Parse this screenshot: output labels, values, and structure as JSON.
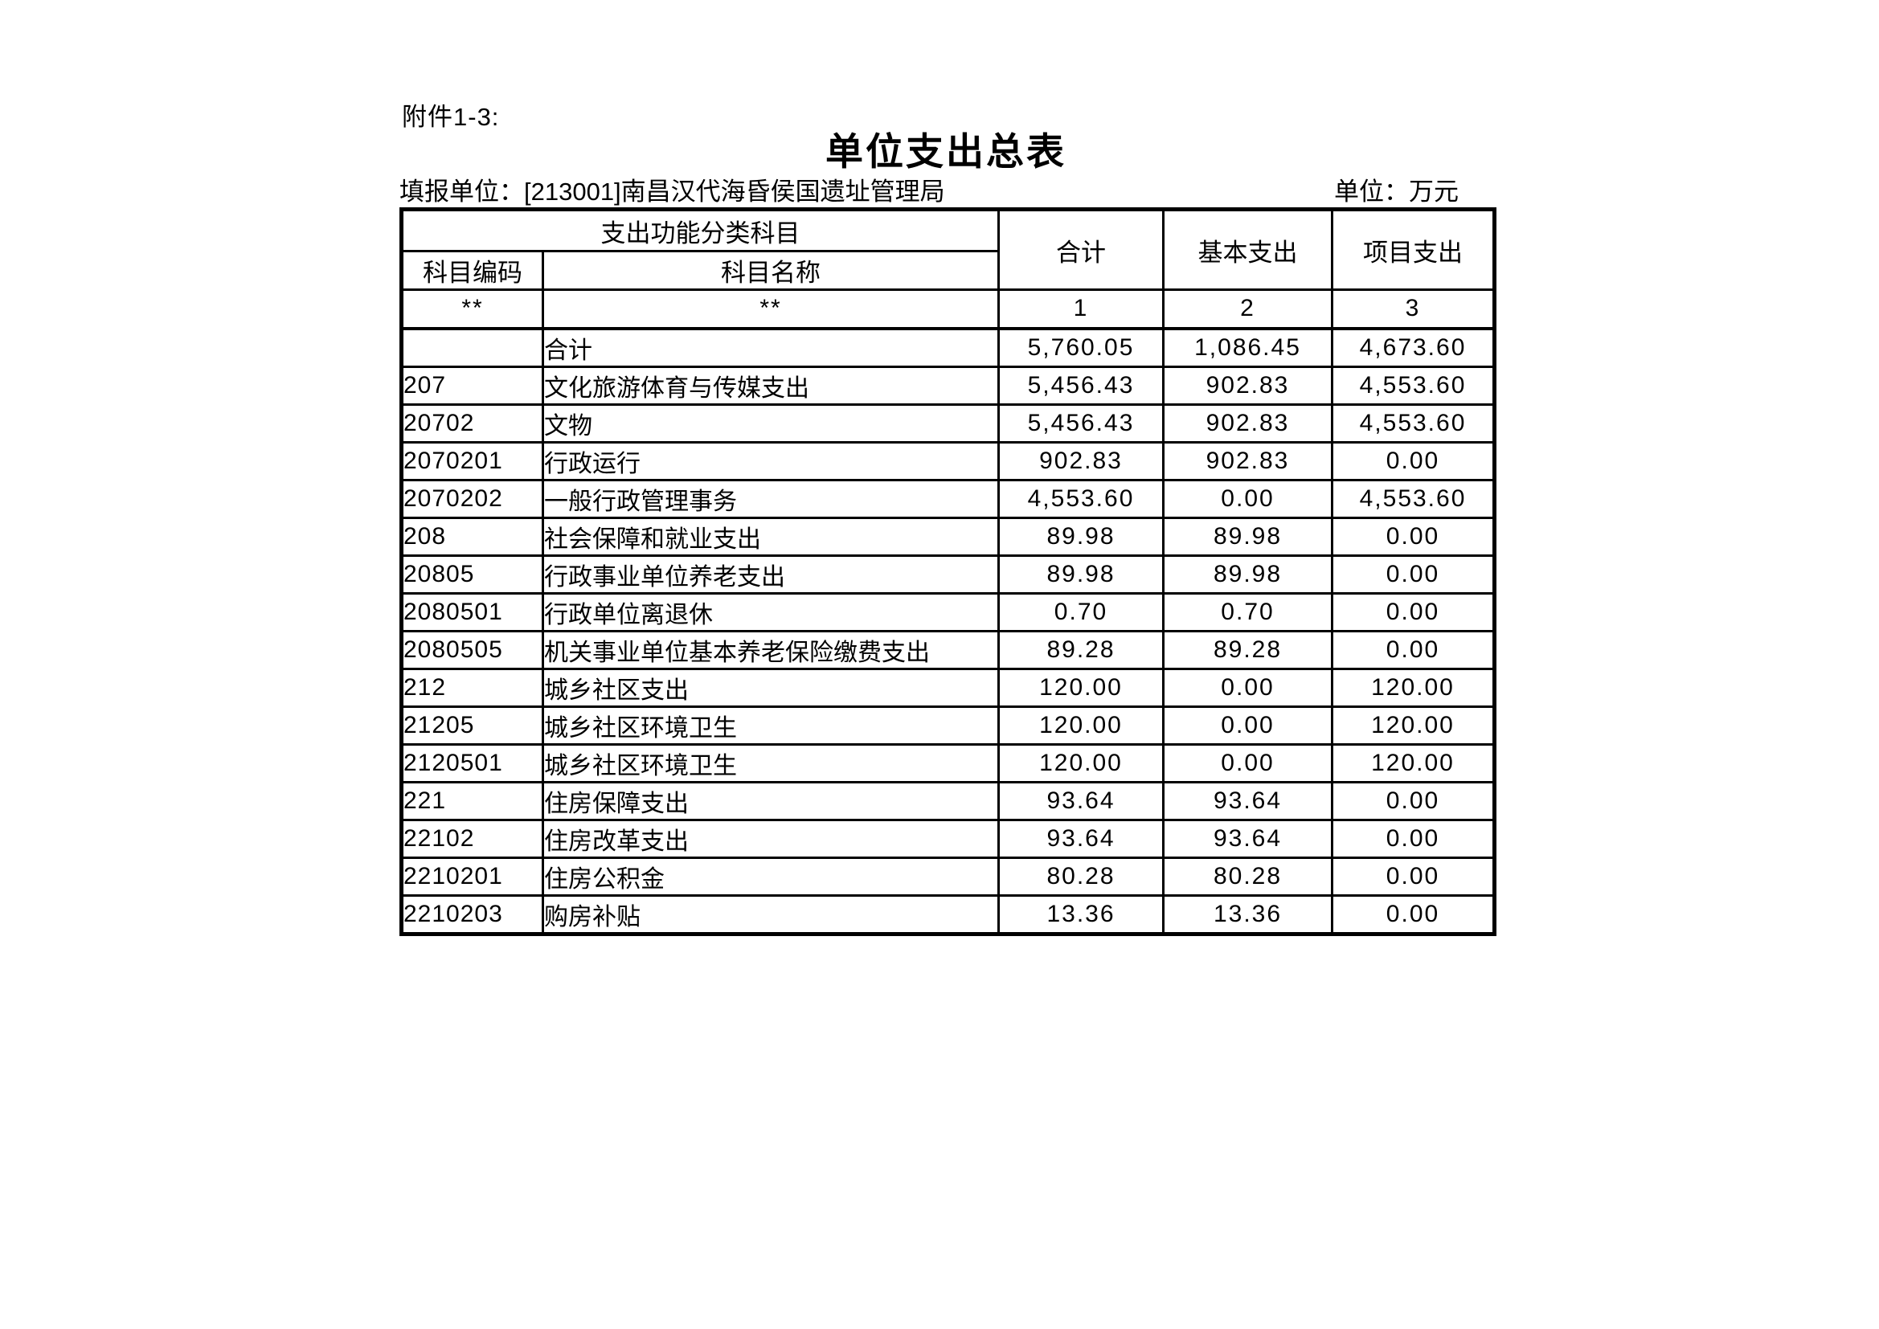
{
  "page": {
    "attachment_label": "附件1-3:",
    "title": "单位支出总表",
    "reporting_unit_line": "填报单位：[213001]南昌汉代海昏侯国遗址管理局",
    "unit_label": "单位：万元"
  },
  "table": {
    "header": {
      "function_group": "支出功能分类科目",
      "code": "科目编码",
      "name": "科目名称",
      "total": "合计",
      "basic": "基本支出",
      "project": "项目支出",
      "star_code": "**",
      "star_name": "**",
      "col_no_total": "1",
      "col_no_basic": "2",
      "col_no_project": "3"
    },
    "rows": [
      {
        "code": "",
        "name": "合计",
        "total": "5,760.05",
        "basic": "1,086.45",
        "project": "4,673.60"
      },
      {
        "code": "207",
        "name": "文化旅游体育与传媒支出",
        "total": "5,456.43",
        "basic": "902.83",
        "project": "4,553.60"
      },
      {
        "code": "20702",
        "name": "文物",
        "total": "5,456.43",
        "basic": "902.83",
        "project": "4,553.60"
      },
      {
        "code": "2070201",
        "name": "行政运行",
        "total": "902.83",
        "basic": "902.83",
        "project": "0.00"
      },
      {
        "code": "2070202",
        "name": "一般行政管理事务",
        "total": "4,553.60",
        "basic": "0.00",
        "project": "4,553.60"
      },
      {
        "code": "208",
        "name": "社会保障和就业支出",
        "total": "89.98",
        "basic": "89.98",
        "project": "0.00"
      },
      {
        "code": "20805",
        "name": "行政事业单位养老支出",
        "total": "89.98",
        "basic": "89.98",
        "project": "0.00"
      },
      {
        "code": "2080501",
        "name": "行政单位离退休",
        "total": "0.70",
        "basic": "0.70",
        "project": "0.00"
      },
      {
        "code": "2080505",
        "name": "机关事业单位基本养老保险缴费支出",
        "total": "89.28",
        "basic": "89.28",
        "project": "0.00"
      },
      {
        "code": "212",
        "name": "城乡社区支出",
        "total": "120.00",
        "basic": "0.00",
        "project": "120.00"
      },
      {
        "code": "21205",
        "name": "城乡社区环境卫生",
        "total": "120.00",
        "basic": "0.00",
        "project": "120.00"
      },
      {
        "code": "2120501",
        "name": "城乡社区环境卫生",
        "total": "120.00",
        "basic": "0.00",
        "project": "120.00"
      },
      {
        "code": "221",
        "name": "住房保障支出",
        "total": "93.64",
        "basic": "93.64",
        "project": "0.00"
      },
      {
        "code": "22102",
        "name": "住房改革支出",
        "total": "93.64",
        "basic": "93.64",
        "project": "0.00"
      },
      {
        "code": "2210201",
        "name": "住房公积金",
        "total": "80.28",
        "basic": "80.28",
        "project": "0.00"
      },
      {
        "code": "2210203",
        "name": "购房补贴",
        "total": "13.36",
        "basic": "13.36",
        "project": "0.00"
      }
    ]
  }
}
